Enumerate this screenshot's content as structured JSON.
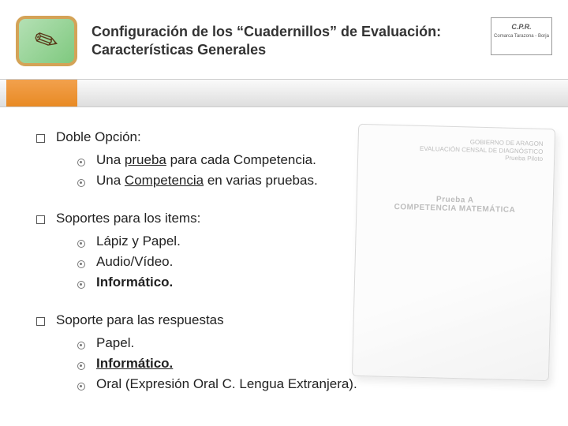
{
  "header": {
    "title_line1": "Configuración de los “Cuadernillos” de Evaluación:",
    "title_line2": "Características Generales",
    "cpr_label": "C.P.R.",
    "cpr_sub": "Comarca Tarazona - Borja"
  },
  "sections": [
    {
      "head": "Doble Opción:",
      "items": [
        {
          "pre": "Una ",
          "u": "prueba",
          "post": " para cada Competencia.",
          "bold": false
        },
        {
          "pre": "Una ",
          "u": "Competencia",
          "post": " en varias pruebas.",
          "bold": false
        }
      ]
    },
    {
      "head": "Soportes para los items:",
      "items": [
        {
          "pre": "Lápiz y Papel.",
          "u": "",
          "post": "",
          "bold": false
        },
        {
          "pre": "Audio/Vídeo.",
          "u": "",
          "post": "",
          "bold": false
        },
        {
          "pre": "Informático.",
          "u": "",
          "post": "",
          "bold": true
        }
      ]
    },
    {
      "head": "Soporte para las respuestas",
      "items": [
        {
          "pre": "Papel.",
          "u": "",
          "post": "",
          "bold": false
        },
        {
          "pre": "",
          "u": "Informático.",
          "post": "",
          "bold": true
        },
        {
          "pre": "Oral (Expresión Oral C. Lengua Extranjera).",
          "u": "",
          "post": "",
          "bold": false
        }
      ]
    }
  ],
  "doc": {
    "hdr1": "GOBIERNO DE ARAGON",
    "hdr2": "EVALUACIÓN CENSAL DE DIAGNÓSTICO",
    "hdr3": "Prueba Piloto",
    "mid1": "Prueba A",
    "mid2": "COMPETENCIA MATEMÁTICA"
  },
  "colors": {
    "accent": "#e88a24",
    "logo_border": "#d4a357"
  }
}
